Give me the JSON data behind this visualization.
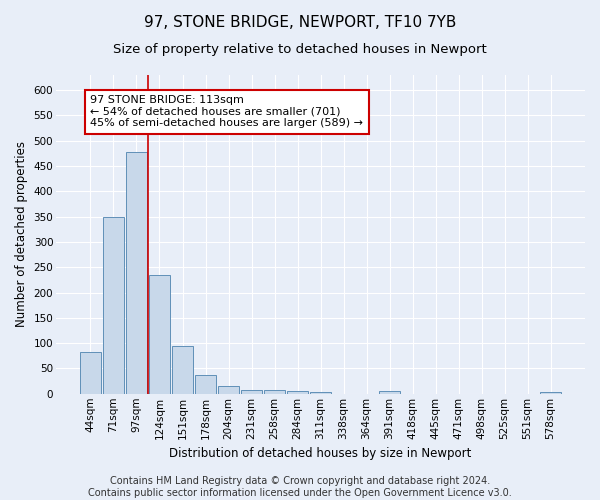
{
  "title": "97, STONE BRIDGE, NEWPORT, TF10 7YB",
  "subtitle": "Size of property relative to detached houses in Newport",
  "xlabel": "Distribution of detached houses by size in Newport",
  "ylabel": "Number of detached properties",
  "categories": [
    "44sqm",
    "71sqm",
    "97sqm",
    "124sqm",
    "151sqm",
    "178sqm",
    "204sqm",
    "231sqm",
    "258sqm",
    "284sqm",
    "311sqm",
    "338sqm",
    "364sqm",
    "391sqm",
    "418sqm",
    "445sqm",
    "471sqm",
    "498sqm",
    "525sqm",
    "551sqm",
    "578sqm"
  ],
  "values": [
    82,
    350,
    478,
    235,
    95,
    37,
    16,
    8,
    8,
    5,
    3,
    0,
    0,
    5,
    0,
    0,
    0,
    0,
    0,
    0,
    3
  ],
  "bar_color": "#c8d8ea",
  "bar_edge_color": "#6090b8",
  "vline_x": 2.5,
  "vline_color": "#cc0000",
  "annotation_text": "97 STONE BRIDGE: 113sqm\n← 54% of detached houses are smaller (701)\n45% of semi-detached houses are larger (589) →",
  "annotation_box_color": "white",
  "annotation_box_edge": "#cc0000",
  "footer": "Contains HM Land Registry data © Crown copyright and database right 2024.\nContains public sector information licensed under the Open Government Licence v3.0.",
  "ylim": [
    0,
    630
  ],
  "yticks": [
    0,
    50,
    100,
    150,
    200,
    250,
    300,
    350,
    400,
    450,
    500,
    550,
    600
  ],
  "bg_color": "#e8eef8",
  "plot_bg": "#e8eef8",
  "grid_color": "#ffffff",
  "title_fontsize": 11,
  "subtitle_fontsize": 9.5,
  "tick_fontsize": 7.5,
  "label_fontsize": 8.5,
  "footer_fontsize": 7,
  "annotation_fontsize": 8
}
